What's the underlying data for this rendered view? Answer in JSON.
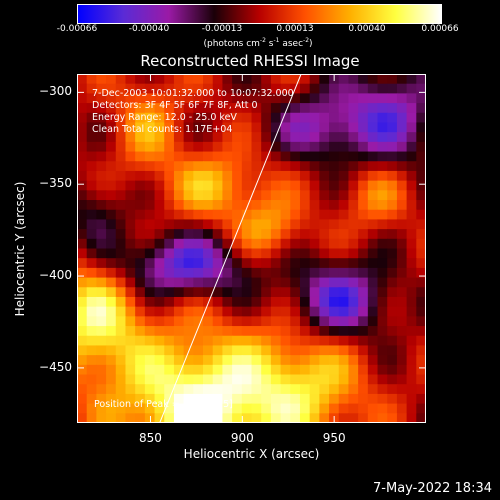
{
  "colorbar": {
    "ticks": [
      "-0.00066",
      "-0.00040",
      "-0.00013",
      "0.00013",
      "0.00040",
      "0.00066"
    ],
    "units_main": "(photons cm",
    "units_exp1": "-2",
    "units_s": " s",
    "units_exp2": "-1",
    "units_asec": " asec",
    "units_exp3": "-2",
    "units_close": ")",
    "colors": [
      "#0000ff",
      "#5a2bd6",
      "#9a1aa6",
      "#1a0008",
      "#b80000",
      "#ff5000",
      "#ffb000",
      "#ffff40",
      "#ffffff"
    ]
  },
  "chart_data": {
    "type": "heatmap",
    "title": "Reconstructed RHESSI Image",
    "xlabel": "Heliocentric X (arcsec)",
    "ylabel": "Heliocentric Y (arcsec)",
    "xlim": [
      810,
      1000
    ],
    "ylim": [
      -480,
      -290
    ],
    "xticks": [
      850,
      900,
      950
    ],
    "yticks": [
      -300,
      -350,
      -400,
      -450
    ],
    "zlim": [
      -0.00066,
      0.00066
    ],
    "annotations": [
      "7-Dec-2003 10:01:32.000 to 10:07:32.000",
      "Detectors: 3F 4F 5F 6F 7F 8F, Att 0",
      "Energy Range: 12.0 - 25.0 keV",
      "Clean    Total counts: 1.17E+04"
    ],
    "peak_label": "Position of Peak = [941,-475]",
    "limb_line": {
      "x": [
        855,
        932
      ],
      "y": [
        -480,
        -290
      ]
    }
  },
  "footer": {
    "date": "7-May-2022 18:34"
  }
}
